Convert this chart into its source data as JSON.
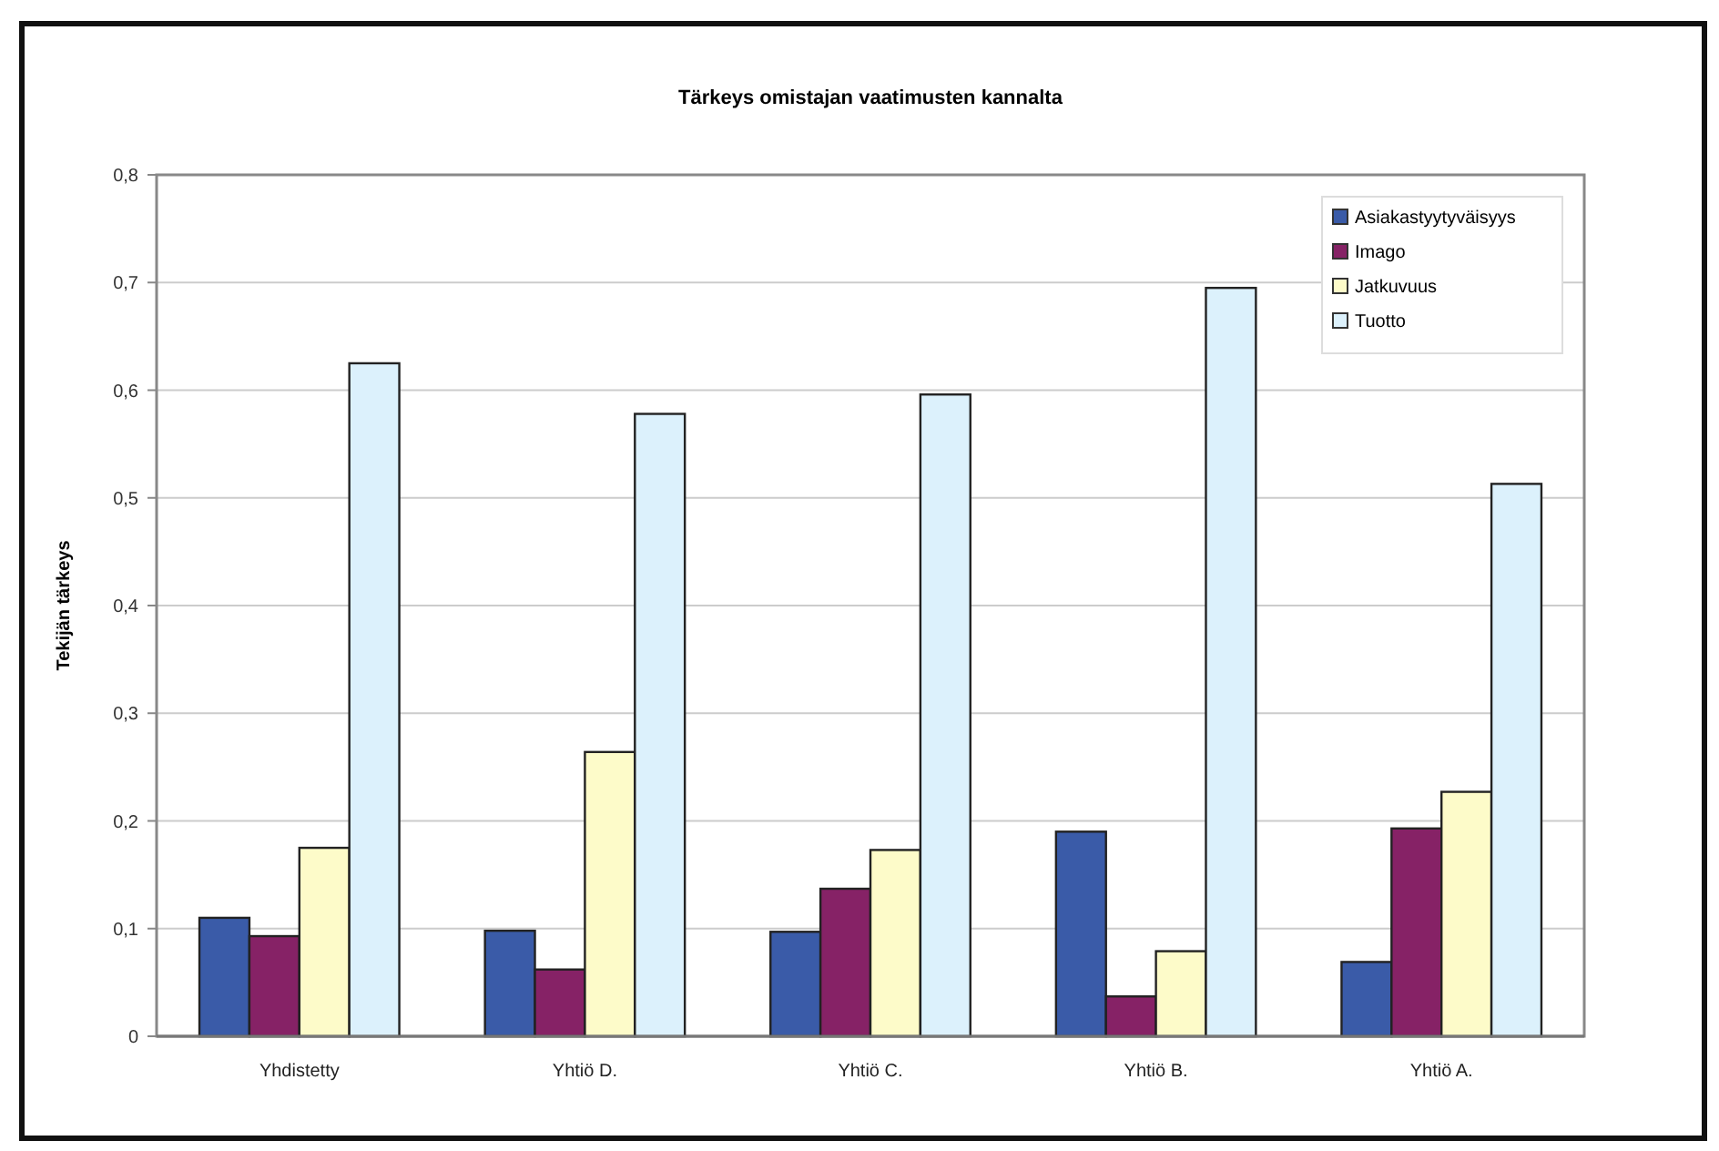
{
  "chart_data": {
    "type": "bar",
    "title": "Tärkeys omistajan vaatimusten kannalta",
    "ylabel": "Tekijän tärkeys",
    "categories": [
      "Yhdistetty",
      "Yhtiö D.",
      "Yhtiö C.",
      "Yhtiö B.",
      "Yhtiö A."
    ],
    "series": [
      {
        "name": "Asiakastyytyväisyys",
        "color": "#3a5ba8",
        "values": [
          0.11,
          0.098,
          0.097,
          0.19,
          0.069
        ]
      },
      {
        "name": "Imago",
        "color": "#862266",
        "values": [
          0.093,
          0.062,
          0.137,
          0.037,
          0.193
        ]
      },
      {
        "name": "Jatkuvuus",
        "color": "#fdfbc9",
        "values": [
          0.175,
          0.264,
          0.173,
          0.079,
          0.227
        ]
      },
      {
        "name": "Tuotto",
        "color": "#dcf1fc",
        "values": [
          0.625,
          0.578,
          0.596,
          0.695,
          0.513
        ]
      }
    ],
    "ylim": [
      0,
      0.8
    ],
    "yticks": [
      0,
      {
        "value": 0.1,
        "label": "0,1"
      },
      {
        "value": 0.2,
        "label": "0,2"
      },
      {
        "value": 0.3,
        "label": "0,3"
      },
      {
        "value": 0.4,
        "label": "0,4"
      },
      {
        "value": 0.5,
        "label": "0,5"
      },
      {
        "value": 0.6,
        "label": "0,6"
      },
      {
        "value": 0.7,
        "label": "0,7"
      },
      {
        "value": 0.8,
        "label": "0,8"
      }
    ],
    "grid": "y",
    "legend": "top right"
  }
}
